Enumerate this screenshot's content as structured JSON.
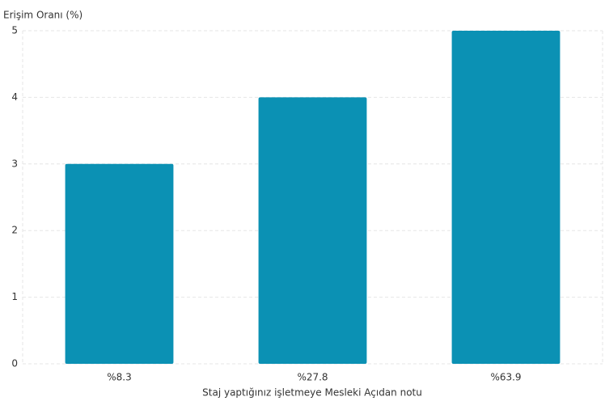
{
  "chart_data": {
    "type": "bar",
    "y_label": "Erişim Oranı (%)",
    "x_label": "Staj yaptığınız işletmeye Mesleki Açıdan notu",
    "categories": [
      "%8.3",
      "%27.8",
      "%63.9"
    ],
    "values": [
      3,
      4,
      5
    ],
    "color": "#0b91b4",
    "ylim": [
      0,
      5
    ],
    "yticks": [
      0,
      1,
      2,
      3,
      4,
      5
    ],
    "grid": true
  }
}
